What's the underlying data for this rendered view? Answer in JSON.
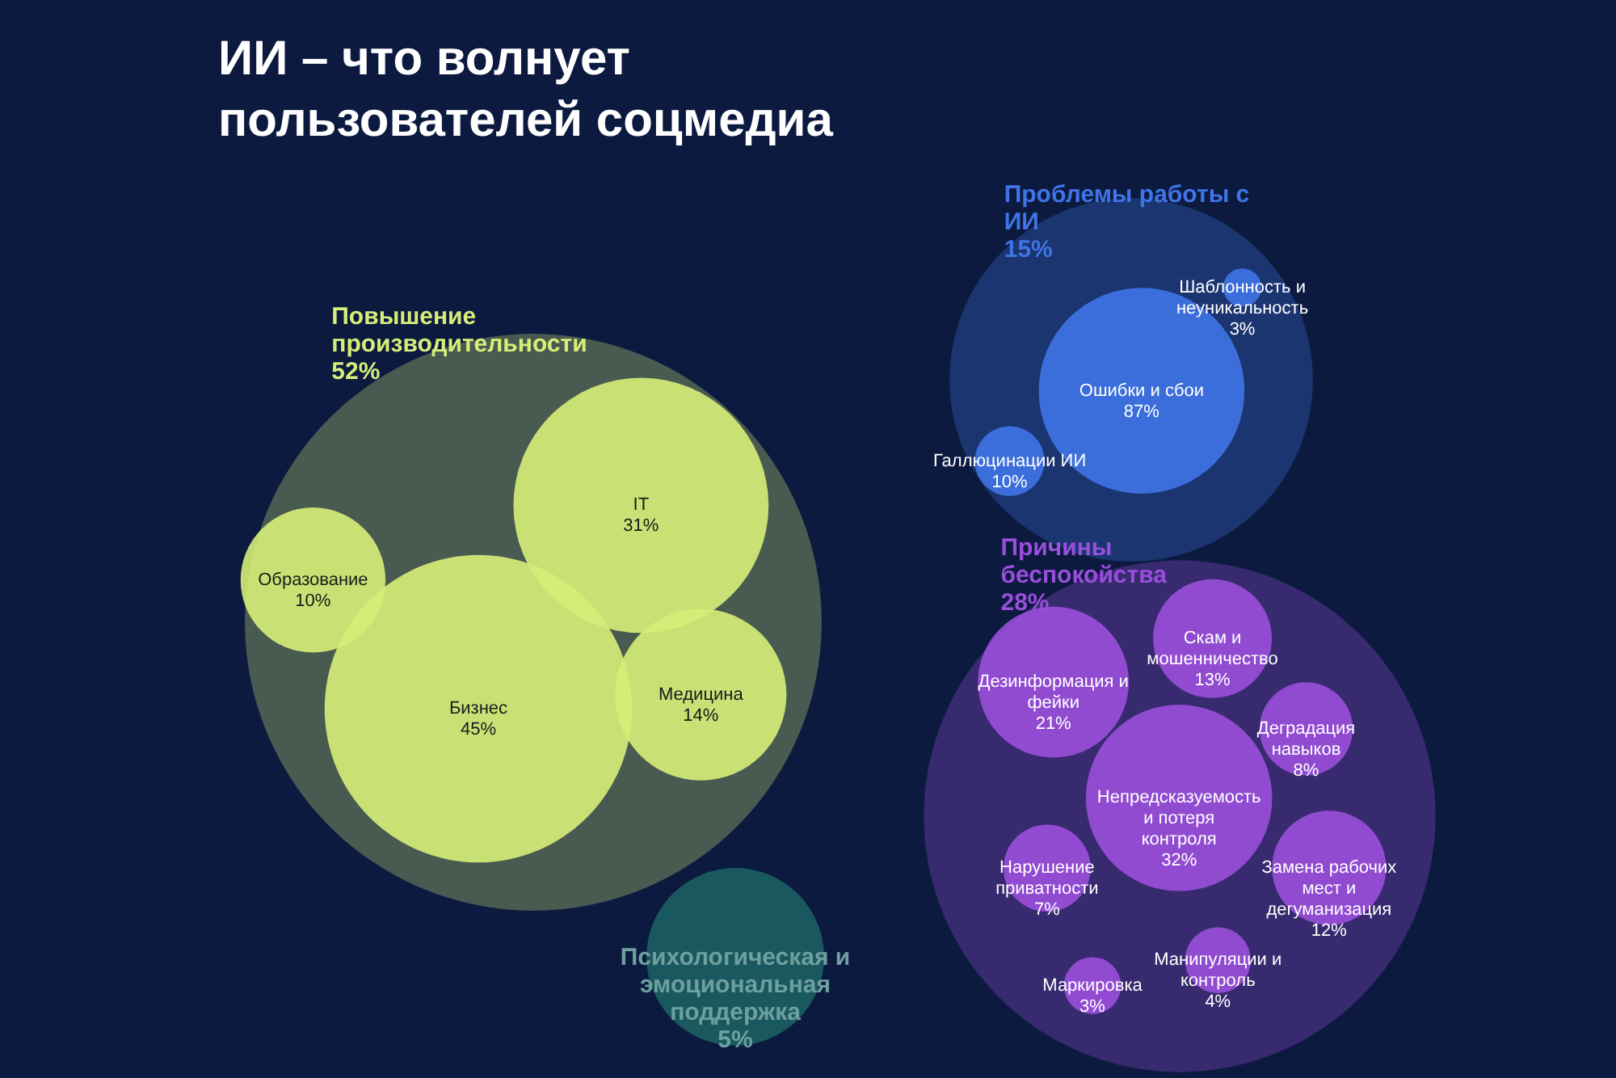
{
  "chart_data": [
    {
      "type": "other",
      "title": "ИИ – что волнует пользователей соцмедиа"
    },
    {
      "type": "other",
      "title": "Повышение производительности",
      "subtitle": "52%",
      "categories": [
        "IT",
        "Медицина",
        "Бизнес",
        "Образование"
      ],
      "values": [
        31,
        14,
        45,
        10
      ],
      "value_labels": [
        "31%",
        "14%",
        "45%",
        "10%"
      ],
      "colors": [
        "#d6ee78",
        "#d6ee78",
        "#d6ee78",
        "#d6ee78"
      ]
    },
    {
      "type": "other",
      "title": "Проблемы работы с ИИ",
      "subtitle": "15%",
      "categories": [
        "Галлюцинации ИИ",
        "Ошибки и сбои",
        "Шаблонность и неуникальность"
      ],
      "values": [
        10,
        87,
        3
      ],
      "value_labels": [
        "10%",
        "87%",
        "3%"
      ],
      "colors": [
        "#3f74e6",
        "#3f74e6",
        "#3f74e6"
      ]
    },
    {
      "type": "other",
      "title": "Причины беспокойства",
      "subtitle": "28%",
      "categories": [
        "Маркировка",
        "Замена рабочих мест и дегуманизация",
        "Дезинформация и фейки",
        "Манипуляции и контроль",
        "Деградация навыков",
        "Скам и мошенничество",
        "Нарушение приватности",
        "Непредсказуемость и потеря контроля"
      ],
      "values": [
        3,
        12,
        21,
        4,
        8,
        13,
        7,
        32
      ],
      "value_labels": [
        "3%",
        "12%",
        "21%",
        "4%",
        "8%",
        "13%",
        "7%",
        "32%"
      ],
      "colors": [
        "#9a4fdc",
        "#9a4fdc",
        "#9a4fdc",
        "#9a4fdc",
        "#9a4fdc",
        "#9a4fdc",
        "#9a4fdc",
        "#9a4fdc"
      ]
    },
    {
      "type": "other",
      "title": "Психологическая и эмоциональная поддержка",
      "subtitle": "5%",
      "colors": [
        "#1f6e6a"
      ]
    }
  ]
}
